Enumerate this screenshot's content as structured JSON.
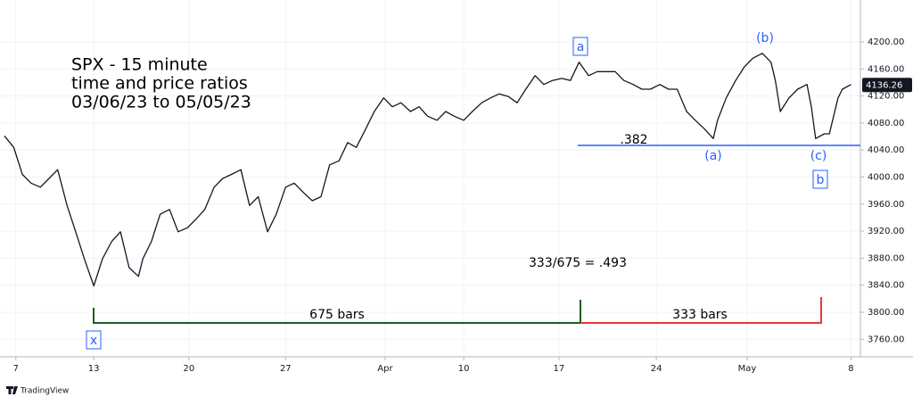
{
  "chart_data": {
    "type": "line",
    "title": [
      "SPX - 15 minute",
      "time and price ratios",
      "03/06/23 to 05/05/23"
    ],
    "series": [
      {
        "name": "SPX",
        "color": "#131722",
        "x": [
          -124,
          -111,
          -99,
          -87,
          -74,
          -62,
          -50,
          -37,
          -25,
          -13,
          0,
          12,
          25,
          37,
          49,
          62,
          68,
          80,
          92,
          105,
          117,
          130,
          142,
          154,
          167,
          179,
          191,
          204,
          216,
          228,
          241,
          253,
          266,
          278,
          290,
          303,
          315,
          327,
          340,
          352,
          364,
          377,
          389,
          402,
          414,
          426,
          439,
          451,
          463,
          476,
          488,
          500,
          513,
          525,
          538,
          550,
          562,
          575,
          587,
          599,
          612,
          624,
          636,
          649,
          661,
          673,
          686,
          698,
          711,
          723,
          735,
          748,
          760,
          772,
          785,
          797,
          809,
          822,
          834,
          847,
          859,
          865,
          877,
          890,
          902,
          914,
          927,
          939,
          945,
          952,
          964,
          976,
          989,
          995,
          1001,
          1013,
          1020,
          1032,
          1038,
          1050
        ],
        "values": [
          4061,
          4044,
          4004,
          3991,
          3985,
          3998,
          4011,
          3958,
          3919,
          3879,
          3839,
          3879,
          3905,
          3919,
          3866,
          3853,
          3879,
          3905,
          3945,
          3952,
          3919,
          3925,
          3938,
          3952,
          3985,
          3998,
          4004,
          4011,
          3958,
          3971,
          3919,
          3945,
          3985,
          3991,
          3978,
          3965,
          3971,
          4018,
          4024,
          4051,
          4044,
          4071,
          4097,
          4117,
          4104,
          4110,
          4097,
          4104,
          4090,
          4084,
          4097,
          4090,
          4084,
          4097,
          4110,
          4117,
          4123,
          4119,
          4110,
          4130,
          4150,
          4137,
          4143,
          4146,
          4143,
          4170,
          4150,
          4156,
          4156,
          4156,
          4143,
          4137,
          4130,
          4130,
          4137,
          4130,
          4130,
          4097,
          4084,
          4071,
          4057,
          4084,
          4117,
          4143,
          4163,
          4176,
          4183,
          4170,
          4143,
          4097,
          4117,
          4130,
          4137,
          4104,
          4057,
          4064,
          4064,
          4117,
          4130,
          4137
        ]
      }
    ],
    "last_price": 4136.26,
    "xlim": [
      -130,
      1063
    ],
    "xticks": [
      {
        "value": -108,
        "label": "7"
      },
      {
        "value": 0,
        "label": "13"
      },
      {
        "value": 132,
        "label": "20"
      },
      {
        "value": 266,
        "label": "27"
      },
      {
        "value": 404,
        "label": "Apr"
      },
      {
        "value": 513,
        "label": "10"
      },
      {
        "value": 645,
        "label": "17"
      },
      {
        "value": 780,
        "label": "24"
      },
      {
        "value": 906,
        "label": "May"
      },
      {
        "value": 1050,
        "label": "8"
      }
    ],
    "ylim": [
      3734,
      4262
    ],
    "yticks": [
      {
        "value": 3760,
        "label": "3760.00"
      },
      {
        "value": 3800,
        "label": "3800.00"
      },
      {
        "value": 3840,
        "label": "3840.00"
      },
      {
        "value": 3880,
        "label": "3880.00"
      },
      {
        "value": 3920,
        "label": "3920.00"
      },
      {
        "value": 3960,
        "label": "3960.00"
      },
      {
        "value": 4000,
        "label": "4000.00"
      },
      {
        "value": 4040,
        "label": "4040.00"
      },
      {
        "value": 4080,
        "label": "4080.00"
      },
      {
        "value": 4120,
        "label": "4120.00"
      },
      {
        "value": 4160,
        "label": "4160.00"
      },
      {
        "value": 4200,
        "label": "4200.00"
      }
    ],
    "grid": true,
    "wave_labels": [
      "a",
      "(b)",
      "(a)",
      "(c)",
      "b",
      "x"
    ],
    "fib_label": ".382",
    "ratio_label": "333/675 = .493",
    "bar_counts": [
      "675 bars",
      "333 bars"
    ],
    "brand": "TradingView"
  }
}
